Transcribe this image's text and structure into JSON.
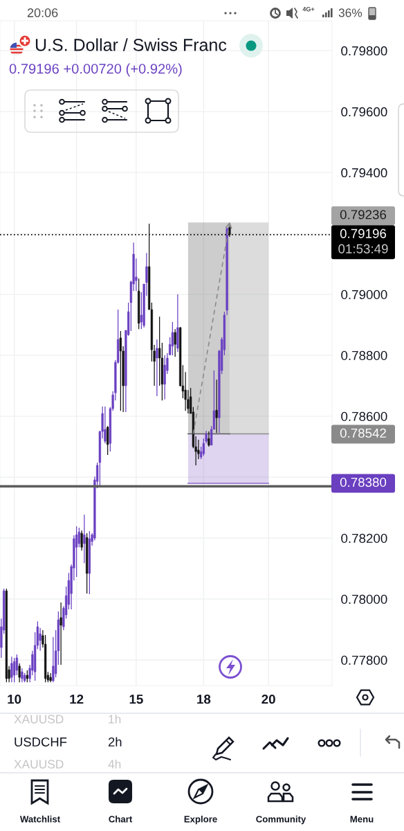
{
  "chart_data": {
    "type": "candlestick",
    "title": "U.S. Dollar / Swiss Franc",
    "subtitle": "0.79196 +0.00720 (+0.92%)",
    "categories": [
      null,
      null,
      null,
      null,
      null,
      "10",
      null,
      null,
      null,
      null,
      null,
      null,
      null,
      null,
      null,
      null,
      null,
      null,
      null,
      null,
      null,
      null,
      null,
      null,
      null,
      null,
      null,
      null,
      null,
      "12",
      null,
      null,
      null,
      null,
      null,
      null,
      null,
      null,
      null,
      null,
      null,
      null,
      null,
      null,
      null,
      null,
      null,
      null,
      null,
      null,
      null,
      null,
      "15",
      null,
      null,
      null,
      null,
      null,
      null,
      null,
      null,
      null,
      null,
      null,
      null,
      null,
      null,
      null,
      null,
      null,
      null,
      null,
      null,
      null,
      null,
      null,
      null,
      null,
      "18",
      null,
      null,
      null,
      null,
      null,
      null,
      null,
      null,
      null,
      null,
      null,
      null,
      null,
      null,
      null,
      null,
      null,
      null,
      null,
      null,
      null,
      null,
      null,
      null,
      "20",
      null,
      null,
      null,
      null,
      null,
      null,
      null,
      null,
      null,
      null,
      null,
      null,
      null,
      null,
      null,
      null,
      null,
      null,
      null,
      null,
      null,
      null,
      null,
      null
    ],
    "ylim": [
      0.77716,
      0.79898
    ],
    "yticks": [
      {
        "value": 0.778,
        "label": "0.77800"
      },
      {
        "value": 0.78,
        "label": "0.78000"
      },
      {
        "value": 0.782,
        "label": "0.78200"
      },
      {
        "value": 0.784,
        "label": null
      },
      {
        "value": 0.786,
        "label": "0.78600"
      },
      {
        "value": 0.788,
        "label": "0.78800"
      },
      {
        "value": 0.79,
        "label": "0.79000"
      },
      {
        "value": 0.792,
        "label": null
      },
      {
        "value": 0.794,
        "label": "0.79400"
      },
      {
        "value": 0.796,
        "label": "0.79600"
      },
      {
        "value": 0.798,
        "label": "0.79800"
      }
    ],
    "grid": true,
    "series": [
      {
        "ohlc": [
          [
            0.77841,
            0.77936,
            0.77807,
            0.77909
          ],
          [
            0.77898,
            0.78034,
            0.77886,
            0.78027
          ],
          [
            0.78027,
            0.78034,
            0.77727,
            0.77739
          ],
          [
            0.77768,
            0.7778,
            0.77727,
            0.77739
          ],
          [
            0.77743,
            0.77811,
            0.77727,
            0.77789
          ],
          [
            0.7775,
            0.77807,
            0.77727,
            0.77795
          ],
          [
            0.77766,
            0.77818,
            0.7775,
            0.77807
          ],
          [
            0.7778,
            0.77789,
            0.77727,
            0.77743
          ],
          [
            0.77739,
            0.77773,
            0.77727,
            0.77761
          ],
          [
            0.77732,
            0.77757,
            0.77727,
            0.7775
          ],
          [
            0.7775,
            0.77766,
            0.77727,
            0.77739
          ],
          [
            0.77739,
            0.77784,
            0.77727,
            0.77773
          ],
          [
            0.77766,
            0.7783,
            0.7775,
            0.77818
          ],
          [
            0.77761,
            0.77891,
            0.77732,
            0.77848
          ],
          [
            0.77848,
            0.77927,
            0.77836,
            0.77909
          ],
          [
            0.77864,
            0.77905,
            0.7783,
            0.77886
          ],
          [
            0.7788,
            0.77898,
            0.77841,
            0.77852
          ],
          [
            0.77852,
            0.77882,
            0.77727,
            0.77739
          ],
          [
            0.7775,
            0.77761,
            0.77727,
            0.77734
          ],
          [
            0.77743,
            0.77757,
            0.77727,
            0.77732
          ],
          [
            0.77732,
            0.77875,
            0.77727,
            0.7778
          ],
          [
            0.77755,
            0.77898,
            0.77743,
            0.7783
          ],
          [
            0.7783,
            0.77959,
            0.77784,
            0.77932
          ],
          [
            0.77939,
            0.77989,
            0.77784,
            0.77914
          ],
          [
            0.77909,
            0.77977,
            0.77898,
            0.7797
          ],
          [
            0.77948,
            0.78041,
            0.77936,
            0.78011
          ],
          [
            0.77982,
            0.78086,
            0.77966,
            0.78061
          ],
          [
            0.78018,
            0.78114,
            0.77966,
            0.78107
          ],
          [
            0.78102,
            0.78209,
            0.78061,
            0.78198
          ],
          [
            0.7817,
            0.78239,
            0.78073,
            0.78211
          ],
          [
            0.78182,
            0.78234,
            0.7817,
            0.7822
          ],
          [
            0.78216,
            0.78225,
            0.78159,
            0.7817
          ],
          [
            0.78182,
            0.78277,
            0.78118,
            0.78211
          ],
          [
            0.78202,
            0.78216,
            0.78018,
            0.78084
          ],
          [
            0.78084,
            0.78223,
            0.78016,
            0.78198
          ],
          [
            0.78189,
            0.78216,
            0.78175,
            0.78211
          ],
          [
            0.782,
            0.78402,
            0.78193,
            0.78391
          ],
          [
            0.78386,
            0.78448,
            0.78364,
            0.78439
          ],
          [
            0.78448,
            0.78552,
            0.78368,
            0.7855
          ],
          [
            0.7855,
            0.78632,
            0.78527,
            0.78609
          ],
          [
            0.78518,
            0.78632,
            0.78511,
            0.78557
          ],
          [
            0.78564,
            0.78568,
            0.78473,
            0.78507
          ],
          [
            0.78511,
            0.7863,
            0.78484,
            0.78625
          ],
          [
            0.78625,
            0.78682,
            0.78618,
            0.7867
          ],
          [
            0.78677,
            0.78784,
            0.78652,
            0.78777
          ],
          [
            0.78777,
            0.7895,
            0.78773,
            0.78852
          ],
          [
            0.78857,
            0.7888,
            0.78618,
            0.78814
          ],
          [
            0.78814,
            0.7883,
            0.78614,
            0.787
          ],
          [
            0.787,
            0.78882,
            0.78614,
            0.78882
          ],
          [
            0.78868,
            0.78973,
            0.78864,
            0.78943
          ],
          [
            0.78973,
            0.79045,
            0.7888,
            0.79041
          ],
          [
            0.79034,
            0.7917,
            0.79011,
            0.79132
          ],
          [
            0.79045,
            0.79118,
            0.79011,
            0.79057
          ],
          [
            0.79011,
            0.79052,
            0.78886,
            0.78905
          ],
          [
            0.78909,
            0.79007,
            0.78886,
            0.78932
          ],
          [
            0.78898,
            0.79034,
            0.78891,
            0.79034
          ],
          [
            0.79039,
            0.79136,
            0.78995,
            0.79091
          ],
          [
            0.79091,
            0.79232,
            0.7895,
            0.7895
          ],
          [
            0.7895,
            0.78973,
            0.7878,
            0.78818
          ],
          [
            0.78814,
            0.78834,
            0.787,
            0.7878
          ],
          [
            0.78791,
            0.78852,
            0.78666,
            0.78823
          ],
          [
            0.78823,
            0.78927,
            0.787,
            0.78791
          ],
          [
            0.78791,
            0.78841,
            0.78652,
            0.78705
          ],
          [
            0.78705,
            0.788,
            0.78655,
            0.78768
          ],
          [
            0.7875,
            0.78807,
            0.78739,
            0.78791
          ],
          [
            0.78802,
            0.78859,
            0.788,
            0.78836
          ],
          [
            0.7883,
            0.78909,
            0.788,
            0.78875
          ],
          [
            0.78875,
            0.78886,
            0.78795,
            0.78836
          ],
          [
            0.78823,
            0.79,
            0.78811,
            0.78891
          ],
          [
            0.78891,
            0.78893,
            0.78698,
            0.787
          ],
          [
            0.787,
            0.78768,
            0.78659,
            0.78682
          ],
          [
            0.78686,
            0.78745,
            0.78618,
            0.78655
          ],
          [
            0.78655,
            0.78686,
            0.78609,
            0.78625
          ],
          [
            0.78664,
            0.78693,
            0.78609,
            0.78609
          ],
          [
            0.78614,
            0.7863,
            0.78495,
            0.785
          ],
          [
            0.785,
            0.78534,
            0.78439,
            0.78484
          ],
          [
            0.78489,
            0.78523,
            0.78459,
            0.78477
          ],
          [
            0.78466,
            0.785,
            0.78459,
            0.78484
          ],
          [
            0.78477,
            0.78527,
            0.7847,
            0.78511
          ],
          [
            0.78518,
            0.78552,
            0.78511,
            0.78541
          ],
          [
            0.78527,
            0.7855,
            0.785,
            0.78505
          ],
          [
            0.78505,
            0.78568,
            0.78505,
            0.78557
          ],
          [
            0.78557,
            0.7875,
            0.78557,
            0.78618
          ],
          [
            0.7862,
            0.7872,
            0.78545,
            0.78595
          ],
          [
            0.78595,
            0.78818,
            0.78545,
            0.78814
          ],
          [
            0.7875,
            0.78859,
            0.78739,
            0.78852
          ],
          [
            0.78818,
            0.78943,
            0.788,
            0.78932
          ],
          [
            0.78948,
            0.7922,
            0.78932,
            0.79216
          ],
          [
            0.7922,
            0.79234,
            0.79189,
            0.79196
          ],
          null,
          null,
          null,
          null,
          null,
          null,
          null,
          null,
          null,
          null,
          null,
          null,
          null,
          null,
          null,
          null,
          null,
          null,
          null,
          null,
          null,
          null,
          null,
          null,
          null,
          null,
          null,
          null,
          null,
          null,
          null,
          null,
          null,
          null,
          null,
          null,
          null,
          null,
          null
        ],
        "colors": [
          "#6a40c2",
          "#6a40c2",
          "#131313",
          "#131313",
          "#6a40c2",
          "#6a40c2",
          "#6a40c2",
          "#131313",
          "#6a40c2",
          "#6a40c2",
          "#131313",
          "#6a40c2",
          "#6a40c2",
          "#6a40c2",
          "#6a40c2",
          "#6a40c2",
          "#131313",
          "#131313",
          "#131313",
          "#131313",
          "#6a40c2",
          "#6a40c2",
          "#6a40c2",
          "#131313",
          "#6a40c2",
          "#6a40c2",
          "#6a40c2",
          "#6a40c2",
          "#6a40c2",
          "#6a40c2",
          "#6a40c2",
          "#131313",
          "#6a40c2",
          "#131313",
          "#6a40c2",
          "#6a40c2",
          "#6a40c2",
          "#6a40c2",
          "#6a40c2",
          "#6a40c2",
          "#6a40c2",
          "#131313",
          "#6a40c2",
          "#6a40c2",
          "#6a40c2",
          "#6a40c2",
          "#131313",
          "#131313",
          "#6a40c2",
          "#6a40c2",
          "#6a40c2",
          "#6a40c2",
          "#6a40c2",
          "#131313",
          "#6a40c2",
          "#6a40c2",
          "#6a40c2",
          "#131313",
          "#131313",
          "#131313",
          "#6a40c2",
          "#131313",
          "#131313",
          "#6a40c2",
          "#6a40c2",
          "#6a40c2",
          "#6a40c2",
          "#131313",
          "#6a40c2",
          "#131313",
          "#131313",
          "#131313",
          "#131313",
          "#131313",
          "#131313",
          "#131313",
          "#131313",
          "#6a40c2",
          "#6a40c2",
          "#6a40c2",
          "#131313",
          "#6a40c2",
          "#6a40c2",
          "#131313",
          "#6a40c2",
          "#6a40c2",
          "#6a40c2",
          "#6a40c2",
          "#131313",
          null,
          null,
          null,
          null,
          null,
          null,
          null,
          null,
          null,
          null,
          null,
          null,
          null,
          null,
          null,
          null,
          null,
          null,
          null,
          null,
          null,
          null,
          null,
          null,
          null,
          null,
          null,
          null,
          null,
          null,
          null,
          null,
          null,
          null,
          null,
          null,
          null,
          null,
          null
        ]
      },
      {
        "type": "line",
        "color": "#8c8c8c",
        "values": [
          null,
          null,
          null,
          null,
          null,
          null,
          null,
          null,
          null,
          null,
          null,
          null,
          null,
          null,
          null,
          null,
          null,
          null,
          null,
          null,
          null,
          null,
          null,
          null,
          null,
          null,
          null,
          null,
          null,
          null,
          null,
          null,
          null,
          null,
          null,
          null,
          null,
          null,
          null,
          null,
          null,
          null,
          null,
          null,
          null,
          null,
          null,
          null,
          null,
          null,
          null,
          null,
          null,
          null,
          null,
          null,
          null,
          null,
          null,
          null,
          null,
          null,
          null,
          null,
          null,
          null,
          null,
          null,
          null,
          null,
          null,
          null,
          null,
          null,
          null,
          null,
          null,
          null,
          null,
          null,
          null,
          null,
          null,
          null,
          null,
          null,
          null,
          null,
          0.78542,
          0.78542,
          0.78542,
          0.78542,
          0.78542,
          0.78542,
          0.78542,
          0.78542,
          0.78542,
          0.78542,
          0.78542,
          0.78542,
          0.78542,
          0.78542,
          0.78542,
          0.78542,
          null,
          null,
          null,
          null,
          null,
          null,
          null,
          null,
          null,
          null,
          null,
          null,
          null,
          null,
          null,
          null,
          null,
          null,
          null,
          null,
          null,
          null,
          null,
          null
        ],
        "lower": [
          null,
          null,
          null,
          null,
          null,
          null,
          null,
          null,
          null,
          null,
          null,
          null,
          null,
          null,
          null,
          null,
          null,
          null,
          null,
          null,
          null,
          null,
          null,
          null,
          null,
          null,
          null,
          null,
          null,
          null,
          null,
          null,
          null,
          null,
          null,
          null,
          null,
          null,
          null,
          null,
          null,
          null,
          null,
          null,
          null,
          null,
          null,
          null,
          null,
          null,
          null,
          null,
          null,
          null,
          null,
          null,
          null,
          null,
          null,
          null,
          null,
          null,
          null,
          null,
          null,
          null,
          null,
          null,
          null,
          null,
          null,
          null,
          null,
          null,
          null,
          null,
          null,
          null,
          null,
          null,
          null,
          null,
          null,
          null,
          null,
          null,
          null,
          null,
          0.78542,
          0.78542,
          0.78542,
          0.78542,
          0.78542,
          0.78542,
          0.78542,
          0.78542,
          0.78542,
          0.78542,
          0.78542,
          0.78542,
          0.78542,
          0.78542,
          0.78542,
          0.78542,
          null,
          null,
          null,
          null,
          null,
          null,
          null,
          null,
          null,
          null,
          null,
          null,
          null,
          null,
          null,
          null,
          null,
          null,
          null,
          null,
          null,
          null,
          null,
          null
        ],
        "upper": [
          null,
          null,
          null,
          null,
          null,
          null,
          null,
          null,
          null,
          null,
          null,
          null,
          null,
          null,
          null,
          null,
          null,
          null,
          null,
          null,
          null,
          null,
          null,
          null,
          null,
          null,
          null,
          null,
          null,
          null,
          null,
          null,
          null,
          null,
          null,
          null,
          null,
          null,
          null,
          null,
          null,
          null,
          null,
          null,
          null,
          null,
          null,
          null,
          null,
          null,
          null,
          null,
          null,
          null,
          null,
          null,
          null,
          null,
          null,
          null,
          null,
          null,
          null,
          null,
          null,
          null,
          null,
          null,
          null,
          null,
          null,
          null,
          null,
          null,
          null,
          null,
          null,
          null,
          null,
          null,
          null,
          null,
          null,
          null,
          null,
          null,
          null,
          null,
          0.79236,
          0.79236,
          0.79236,
          0.79236,
          0.79236,
          0.79236,
          0.79236,
          0.79236,
          0.79236,
          0.79236,
          0.79236,
          0.79236,
          0.79236,
          0.79236,
          0.79236,
          0.79236,
          null,
          null,
          null,
          null,
          null,
          null,
          null,
          null,
          null,
          null,
          null,
          null,
          null,
          null,
          null,
          null,
          null,
          null,
          null,
          null,
          null,
          null,
          null,
          null
        ]
      },
      {
        "type": "line",
        "color": "#9575cd",
        "values": [
          null,
          null,
          null,
          null,
          null,
          null,
          null,
          null,
          null,
          null,
          null,
          null,
          null,
          null,
          null,
          null,
          null,
          null,
          null,
          null,
          null,
          null,
          null,
          null,
          null,
          null,
          null,
          null,
          null,
          null,
          null,
          null,
          null,
          null,
          null,
          null,
          null,
          null,
          null,
          null,
          null,
          null,
          null,
          null,
          null,
          null,
          null,
          null,
          null,
          null,
          null,
          null,
          null,
          null,
          null,
          null,
          null,
          null,
          null,
          null,
          null,
          null,
          null,
          null,
          null,
          null,
          null,
          null,
          null,
          null,
          null,
          null,
          0.7838,
          0.7838,
          0.7838,
          0.7838,
          0.7838,
          0.7838,
          0.7838,
          0.7838,
          0.7838,
          0.7838,
          0.7838,
          0.7838,
          0.7838,
          0.7838,
          0.7838,
          0.7838,
          0.7838,
          0.7838,
          0.7838,
          0.7838,
          0.7838,
          0.7838,
          0.7838,
          0.7838,
          0.7838,
          0.7838,
          0.7838,
          0.7838,
          0.7838,
          0.7838,
          0.7838,
          0.7838,
          null,
          null,
          null,
          null,
          null,
          null,
          null,
          null,
          null,
          null,
          null,
          null,
          null,
          null,
          null,
          null,
          null,
          null,
          null,
          null,
          null,
          null,
          null,
          null
        ],
        "lower": [
          null,
          null,
          null,
          null,
          null,
          null,
          null,
          null,
          null,
          null,
          null,
          null,
          null,
          null,
          null,
          null,
          null,
          null,
          null,
          null,
          null,
          null,
          null,
          null,
          null,
          null,
          null,
          null,
          null,
          null,
          null,
          null,
          null,
          null,
          null,
          null,
          null,
          null,
          null,
          null,
          null,
          null,
          null,
          null,
          null,
          null,
          null,
          null,
          null,
          null,
          null,
          null,
          null,
          null,
          null,
          null,
          null,
          null,
          null,
          null,
          null,
          null,
          null,
          null,
          null,
          null,
          null,
          null,
          null,
          null,
          null,
          null,
          0.7838,
          0.7838,
          0.7838,
          0.7838,
          0.7838,
          0.7838,
          0.7838,
          0.7838,
          0.7838,
          0.7838,
          0.7838,
          0.7838,
          0.7838,
          0.7838,
          0.7838,
          0.7838,
          0.7838,
          0.7838,
          0.7838,
          0.7838,
          0.7838,
          0.7838,
          0.7838,
          0.7838,
          0.7838,
          0.7838,
          0.7838,
          0.7838,
          0.7838,
          0.7838,
          0.7838,
          0.7838,
          null,
          null,
          null,
          null,
          null,
          null,
          null,
          null,
          null,
          null,
          null,
          null,
          null,
          null,
          null,
          null,
          null,
          null,
          null,
          null,
          null,
          null,
          null,
          null
        ],
        "upper": [
          null,
          null,
          null,
          null,
          null,
          null,
          null,
          null,
          null,
          null,
          null,
          null,
          null,
          null,
          null,
          null,
          null,
          null,
          null,
          null,
          null,
          null,
          null,
          null,
          null,
          null,
          null,
          null,
          null,
          null,
          null,
          null,
          null,
          null,
          null,
          null,
          null,
          null,
          null,
          null,
          null,
          null,
          null,
          null,
          null,
          null,
          null,
          null,
          null,
          null,
          null,
          null,
          null,
          null,
          null,
          null,
          null,
          null,
          null,
          null,
          null,
          null,
          null,
          null,
          null,
          null,
          null,
          null,
          null,
          null,
          null,
          null,
          0.78542,
          0.78542,
          0.78542,
          0.78542,
          0.78542,
          0.78542,
          0.78542,
          0.78542,
          0.78542,
          0.78542,
          0.78542,
          0.78542,
          0.78542,
          0.78542,
          0.78542,
          0.78542,
          0.78542,
          0.78542,
          0.78542,
          0.78542,
          0.78542,
          0.78542,
          0.78542,
          0.78542,
          0.78542,
          0.78542,
          0.78542,
          0.78542,
          0.78542,
          0.78542,
          0.78542,
          0.78542,
          null,
          null,
          null,
          null,
          null,
          null,
          null,
          null,
          null,
          null,
          null,
          null,
          null,
          null,
          null,
          null,
          null,
          null,
          null,
          null,
          null,
          null,
          null,
          null
        ]
      },
      {
        "type": "line",
        "color": "#5a5a5a",
        "values": [
          null,
          null,
          null,
          null,
          null,
          null,
          null,
          null,
          null,
          null,
          null,
          null,
          null,
          null,
          null,
          null,
          null,
          null,
          null,
          null,
          null,
          null,
          null,
          null,
          null,
          null,
          null,
          null,
          null,
          null,
          null,
          null,
          null,
          null,
          null,
          null,
          null,
          null,
          null,
          null,
          null,
          null,
          null,
          null,
          null,
          null,
          null,
          null,
          null,
          null,
          null,
          null,
          null,
          null,
          null,
          null,
          null,
          null,
          null,
          null,
          null,
          null,
          null,
          null,
          null,
          null,
          null,
          null,
          null,
          null,
          null,
          null,
          0.78542,
          0.78542,
          0.78542,
          0.78542,
          0.78542,
          0.78542,
          0.78542,
          0.78542,
          0.78542,
          0.78542,
          0.78542,
          0.78542,
          0.78542,
          0.78542,
          0.78542,
          0.78542,
          0.78542,
          null,
          null,
          null,
          null,
          null,
          null,
          null,
          null,
          null,
          null,
          null,
          null,
          null,
          null,
          null,
          null,
          null,
          null,
          null,
          null,
          null,
          null,
          null,
          null,
          null,
          null,
          null,
          null,
          null,
          null,
          null,
          null,
          null,
          null,
          null,
          null,
          null,
          null,
          null
        ],
        "lower": [
          null,
          null,
          null,
          null,
          null,
          null,
          null,
          null,
          null,
          null,
          null,
          null,
          null,
          null,
          null,
          null,
          null,
          null,
          null,
          null,
          null,
          null,
          null,
          null,
          null,
          null,
          null,
          null,
          null,
          null,
          null,
          null,
          null,
          null,
          null,
          null,
          null,
          null,
          null,
          null,
          null,
          null,
          null,
          null,
          null,
          null,
          null,
          null,
          null,
          null,
          null,
          null,
          null,
          null,
          null,
          null,
          null,
          null,
          null,
          null,
          null,
          null,
          null,
          null,
          null,
          null,
          null,
          null,
          null,
          null,
          null,
          null,
          0.78542,
          0.78542,
          0.78542,
          0.78542,
          0.78542,
          0.78542,
          0.78542,
          0.78542,
          0.78542,
          0.78542,
          0.78542,
          0.78542,
          0.78542,
          0.78542,
          0.78542,
          0.78542,
          0.78542,
          null,
          null,
          null,
          null,
          null,
          null,
          null,
          null,
          null,
          null,
          null,
          null,
          null,
          null,
          null,
          null,
          null,
          null,
          null,
          null,
          null,
          null,
          null,
          null,
          null,
          null,
          null,
          null,
          null,
          null,
          null,
          null,
          null,
          null,
          null,
          null,
          null,
          null,
          null
        ],
        "upper": [
          null,
          null,
          null,
          null,
          null,
          null,
          null,
          null,
          null,
          null,
          null,
          null,
          null,
          null,
          null,
          null,
          null,
          null,
          null,
          null,
          null,
          null,
          null,
          null,
          null,
          null,
          null,
          null,
          null,
          null,
          null,
          null,
          null,
          null,
          null,
          null,
          null,
          null,
          null,
          null,
          null,
          null,
          null,
          null,
          null,
          null,
          null,
          null,
          null,
          null,
          null,
          null,
          null,
          null,
          null,
          null,
          null,
          null,
          null,
          null,
          null,
          null,
          null,
          null,
          null,
          null,
          null,
          null,
          null,
          null,
          null,
          null,
          0.79236,
          0.79236,
          0.79236,
          0.79236,
          0.79236,
          0.79236,
          0.79236,
          0.79236,
          0.79236,
          0.79236,
          0.79236,
          0.79236,
          0.79236,
          0.79236,
          0.79236,
          0.79236,
          0.79236,
          null,
          null,
          null,
          null,
          null,
          null,
          null,
          null,
          null,
          null,
          null,
          null,
          null,
          null,
          null,
          null,
          null,
          null,
          null,
          null,
          null,
          null,
          null,
          null,
          null,
          null,
          null,
          null,
          null,
          null,
          null,
          null,
          null,
          null,
          null,
          null,
          null,
          null,
          null
        ]
      }
    ],
    "ref_lines": [
      {
        "axis": "y",
        "value": 0.79196,
        "label": "0.79196\n01:53:49",
        "color": "#000000",
        "line_style": "dotted"
      },
      {
        "axis": "y",
        "value": 0.7837,
        "color": "#5c5c5c",
        "line_style": "solid"
      }
    ],
    "annotations": [
      "20:06",
      "4G+",
      "36%",
      "XAUUSD",
      "1h",
      "USDCHF",
      "2h",
      "XAUUSD",
      "4h",
      "Watchlist",
      "Chart",
      "Explore",
      "Community",
      "Menu",
      "0.79236",
      "0.78542",
      "0.78380"
    ]
  }
}
